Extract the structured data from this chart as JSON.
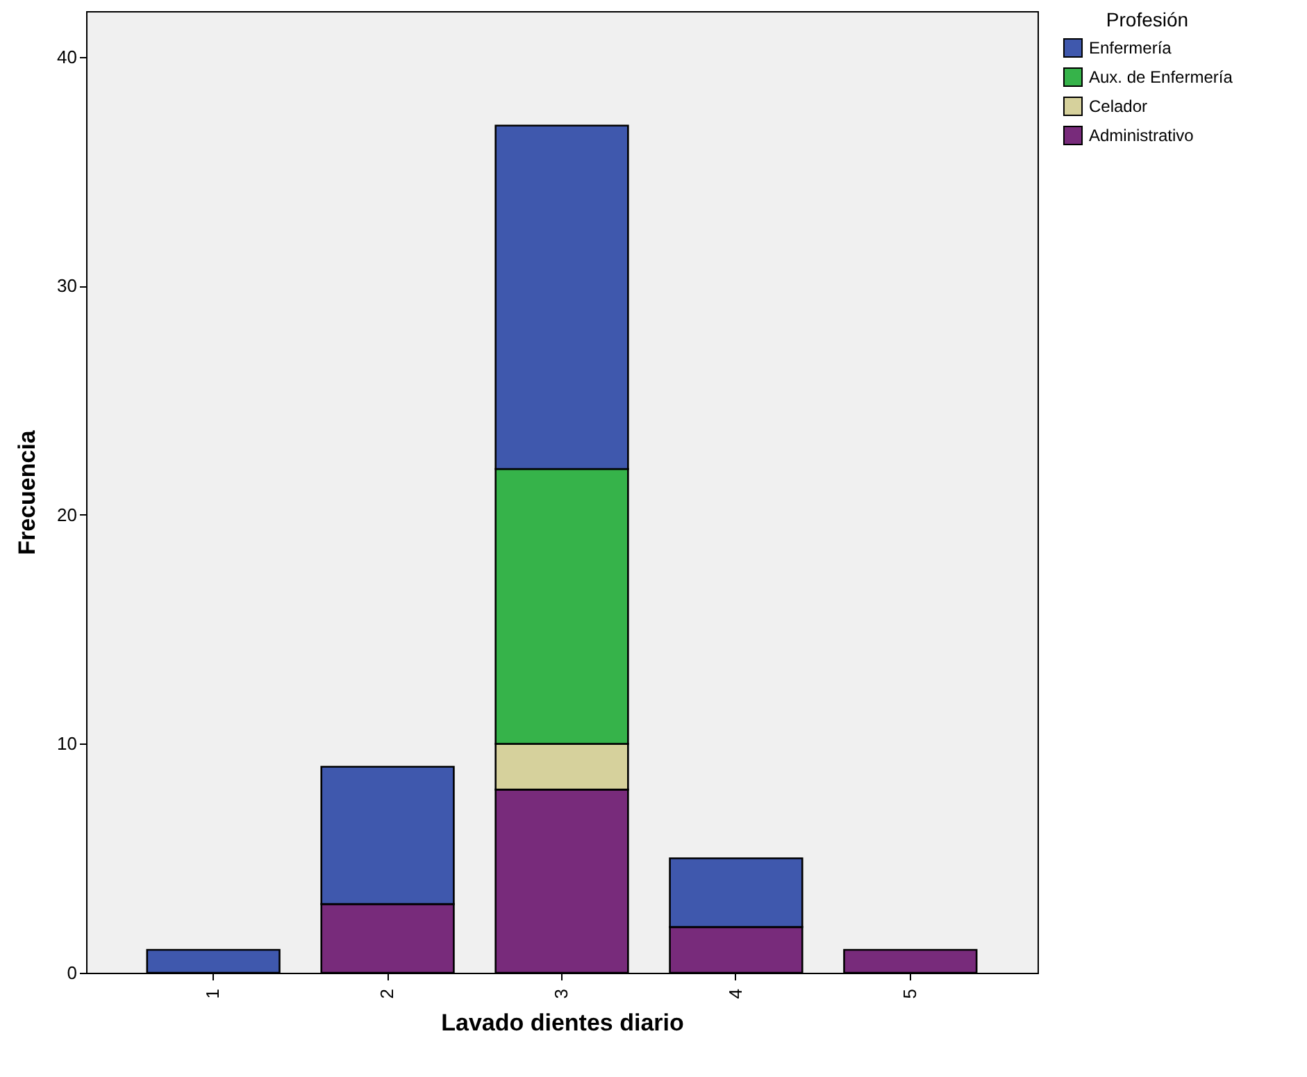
{
  "chart_data": {
    "type": "bar",
    "stacked": true,
    "xlabel": "Lavado dientes diario",
    "ylabel": "Frecuencia",
    "legend_title": "Profesión",
    "legend": "top right",
    "categories": [
      "1",
      "2",
      "3",
      "4",
      "5"
    ],
    "ylim": [
      0,
      42
    ],
    "yticks": [
      0,
      10,
      20,
      30,
      40
    ],
    "series": [
      {
        "name": "Administrativo",
        "color": "#782b7b",
        "values": [
          null,
          3,
          8,
          2,
          1
        ]
      },
      {
        "name": "Celador",
        "color": "#d6d19c",
        "values": [
          null,
          null,
          2,
          null,
          null
        ]
      },
      {
        "name": "Aux. de Enfermería",
        "color": "#36b34a",
        "values": [
          null,
          null,
          12,
          null,
          null
        ]
      },
      {
        "name": "Enfermería",
        "color": "#3f58ad",
        "values": [
          1,
          6,
          15,
          3,
          null
        ]
      }
    ]
  }
}
